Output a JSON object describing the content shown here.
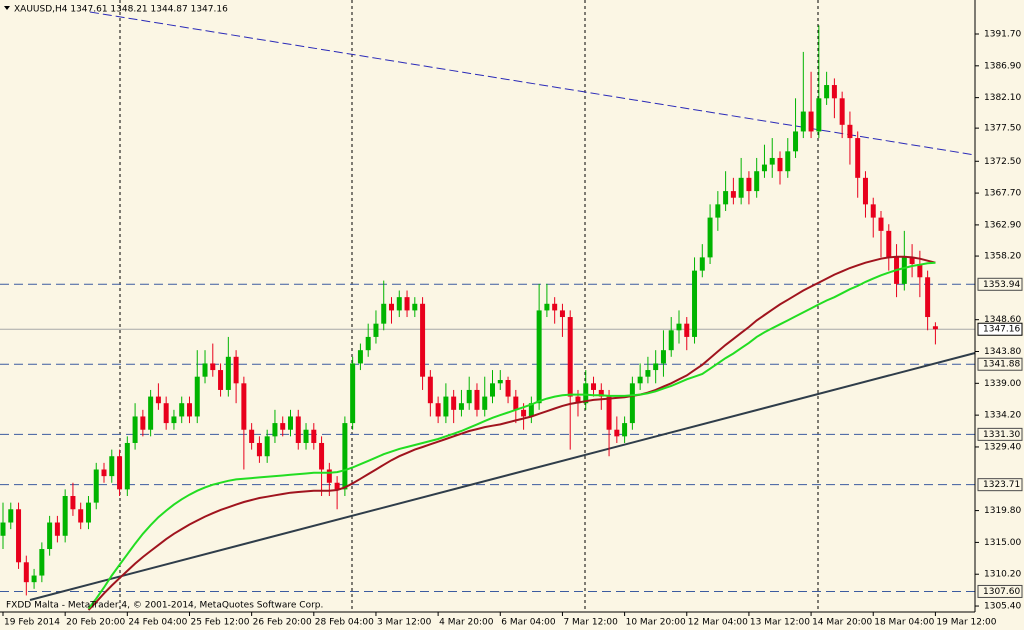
{
  "chart_data": {
    "type": "candlestick",
    "header": "XAUUSD,H4  1347.61 1348.21 1344.87 1347.16",
    "footer": "FXDD Malta - MetaTrader 4, © 2001-2014, MetaQuotes Software Corp.",
    "bull_color": "#00b400",
    "bear_color": "#e8001c",
    "ylim": [
      1304.5,
      1396.83
    ],
    "yticks": [
      {
        "value": 1391.7,
        "label": "1391.70"
      },
      {
        "value": 1386.9,
        "label": "1386.90"
      },
      {
        "value": 1382.1,
        "label": "1382.10"
      },
      {
        "value": 1377.5,
        "label": "1377.50"
      },
      {
        "value": 1372.5,
        "label": "1372.50"
      },
      {
        "value": 1367.7,
        "label": "1367.70"
      },
      {
        "value": 1362.9,
        "label": "1362.90"
      },
      {
        "value": 1358.2,
        "label": "1358.20"
      },
      {
        "value": 1348.6,
        "label": "1348.60"
      },
      {
        "value": 1343.8,
        "label": "1343.80"
      },
      {
        "value": 1339.0,
        "label": "1339.00"
      },
      {
        "value": 1334.2,
        "label": "1334.20"
      },
      {
        "value": 1329.4,
        "label": "1329.40"
      },
      {
        "value": 1319.8,
        "label": "1319.80"
      },
      {
        "value": 1315.0,
        "label": "1315.00"
      },
      {
        "value": 1310.2,
        "label": "1310.20"
      },
      {
        "value": 1305.4,
        "label": "1305.40"
      }
    ],
    "levels": [
      1353.94,
      1341.88,
      {
        "value": 1331.3,
        "label": "1331.30"
      },
      1323.71,
      {
        "value": 1307.6,
        "label": "1307.60"
      }
    ],
    "level_color": "#3c5ca0",
    "current_price": 1347.16,
    "categories": [
      "19 Feb 2014",
      null,
      null,
      null,
      null,
      null,
      null,
      null,
      "20 Feb 20:00",
      null,
      null,
      null,
      null,
      null,
      null,
      null,
      "24 Feb 04:00",
      null,
      null,
      null,
      null,
      null,
      null,
      null,
      "25 Feb 12:00",
      null,
      null,
      null,
      null,
      null,
      null,
      null,
      "26 Feb 20:00",
      null,
      null,
      null,
      null,
      null,
      null,
      null,
      "28 Feb 04:00",
      null,
      null,
      null,
      null,
      null,
      null,
      null,
      "3 Mar 12:00",
      null,
      null,
      null,
      null,
      null,
      null,
      null,
      "4 Mar 20:00",
      null,
      null,
      null,
      null,
      null,
      null,
      null,
      "6 Mar 04:00",
      null,
      null,
      null,
      null,
      null,
      null,
      null,
      "7 Mar 12:00",
      null,
      null,
      null,
      null,
      null,
      null,
      null,
      "10 Mar 20:00",
      null,
      null,
      null,
      null,
      null,
      null,
      null,
      "12 Mar 04:00",
      null,
      null,
      null,
      null,
      null,
      null,
      null,
      "13 Mar 12:00",
      null,
      null,
      null,
      null,
      null,
      null,
      null,
      "14 Mar 20:00",
      null,
      null,
      null,
      null,
      null,
      null,
      null,
      "18 Mar 04:00",
      null,
      null,
      null,
      null,
      null,
      null,
      null,
      "19 Mar 12:00"
    ],
    "ohlc": [
      [
        1316,
        1321,
        1314,
        1318
      ],
      [
        1318,
        1321,
        1317,
        1320
      ],
      [
        1320,
        1321,
        1311,
        1312
      ],
      [
        1312,
        1313,
        1307,
        1309
      ],
      [
        1309,
        1311,
        1308,
        1310
      ],
      [
        1310,
        1315,
        1309,
        1314
      ],
      [
        1314,
        1319,
        1313,
        1318
      ],
      [
        1318,
        1319,
        1315,
        1316
      ],
      [
        1316,
        1323,
        1315,
        1322
      ],
      [
        1322,
        1324,
        1319,
        1320
      ],
      [
        1320,
        1321,
        1317,
        1318
      ],
      [
        1318,
        1322,
        1317,
        1321
      ],
      [
        1321,
        1327,
        1320,
        1326
      ],
      [
        1326,
        1327,
        1324,
        1325
      ],
      [
        1325,
        1329,
        1324,
        1328
      ],
      [
        1328,
        1329,
        1322,
        1323
      ],
      [
        1323,
        1331,
        1322,
        1330
      ],
      [
        1330,
        1336,
        1329,
        1334
      ],
      [
        1334,
        1335,
        1331,
        1332
      ],
      [
        1332,
        1338,
        1331,
        1337
      ],
      [
        1337,
        1339,
        1335,
        1336
      ],
      [
        1336,
        1337,
        1332,
        1333
      ],
      [
        1333,
        1335,
        1332,
        1334
      ],
      [
        1334,
        1337,
        1333,
        1336
      ],
      [
        1336,
        1337,
        1333,
        1334
      ],
      [
        1334,
        1344,
        1333,
        1340
      ],
      [
        1340,
        1344,
        1339,
        1342
      ],
      [
        1342,
        1345,
        1340,
        1341
      ],
      [
        1341,
        1342,
        1337,
        1338
      ],
      [
        1338,
        1346,
        1337,
        1343
      ],
      [
        1343,
        1344,
        1336,
        1339
      ],
      [
        1339,
        1340,
        1326,
        1332
      ],
      [
        1332,
        1333,
        1329,
        1330
      ],
      [
        1330,
        1331,
        1327,
        1328
      ],
      [
        1328,
        1332,
        1327,
        1331
      ],
      [
        1331,
        1335,
        1330,
        1333
      ],
      [
        1333,
        1334,
        1331,
        1332
      ],
      [
        1332,
        1335,
        1331,
        1334
      ],
      [
        1334,
        1335,
        1329,
        1330
      ],
      [
        1330,
        1333,
        1329,
        1332
      ],
      [
        1332,
        1333,
        1329,
        1330
      ],
      [
        1330,
        1331,
        1322,
        1326
      ],
      [
        1326,
        1327,
        1322,
        1324
      ],
      [
        1324,
        1325,
        1320,
        1323
      ],
      [
        1323,
        1334,
        1322,
        1333
      ],
      [
        1333,
        1343,
        1332,
        1342
      ],
      [
        1342,
        1345,
        1341,
        1344
      ],
      [
        1344,
        1348,
        1343,
        1346
      ],
      [
        1346,
        1350,
        1345,
        1348
      ],
      [
        1348,
        1354.5,
        1347,
        1351
      ],
      [
        1351,
        1352,
        1348,
        1350
      ],
      [
        1350,
        1353,
        1349,
        1352
      ],
      [
        1352,
        1353,
        1349,
        1350
      ],
      [
        1350,
        1352,
        1349,
        1351
      ],
      [
        1351,
        1352,
        1338,
        1340
      ],
      [
        1340,
        1341,
        1334,
        1336
      ],
      [
        1336,
        1337,
        1333,
        1334
      ],
      [
        1334,
        1339,
        1333,
        1337
      ],
      [
        1337,
        1338,
        1333,
        1335
      ],
      [
        1335,
        1338,
        1334,
        1336
      ],
      [
        1336,
        1340,
        1335,
        1338
      ],
      [
        1338,
        1339,
        1334,
        1335
      ],
      [
        1335,
        1340,
        1334,
        1337
      ],
      [
        1337,
        1341,
        1336,
        1339
      ],
      [
        1339,
        1341,
        1338,
        1339.5
      ],
      [
        1339.5,
        1340,
        1336,
        1337
      ],
      [
        1337,
        1338,
        1333,
        1335
      ],
      [
        1335,
        1336,
        1332,
        1334
      ],
      [
        1334,
        1337,
        1333,
        1336
      ],
      [
        1336,
        1354,
        1335,
        1350
      ],
      [
        1350,
        1354,
        1349,
        1351
      ],
      [
        1351,
        1352,
        1348,
        1350
      ],
      [
        1350,
        1351,
        1346,
        1349
      ],
      [
        1349,
        1350,
        1329,
        1337
      ],
      [
        1337,
        1338,
        1334,
        1336
      ],
      [
        1336,
        1341,
        1335,
        1339
      ],
      [
        1339,
        1340,
        1337,
        1338
      ],
      [
        1338,
        1339,
        1335,
        1337
      ],
      [
        1337,
        1338,
        1328,
        1332
      ],
      [
        1332,
        1334,
        1330,
        1331
      ],
      [
        1331,
        1334,
        1330,
        1333
      ],
      [
        1333,
        1340,
        1332,
        1339
      ],
      [
        1339,
        1342,
        1338,
        1340
      ],
      [
        1340,
        1343,
        1339,
        1341
      ],
      [
        1341,
        1344,
        1339,
        1342
      ],
      [
        1342,
        1347,
        1340,
        1344
      ],
      [
        1344,
        1349,
        1343,
        1347
      ],
      [
        1347,
        1350,
        1345,
        1348
      ],
      [
        1348,
        1349,
        1344,
        1346
      ],
      [
        1346,
        1358,
        1345,
        1356
      ],
      [
        1356,
        1360,
        1355,
        1358
      ],
      [
        1358,
        1366,
        1357,
        1364
      ],
      [
        1364,
        1368,
        1362,
        1366
      ],
      [
        1366,
        1371,
        1365,
        1368
      ],
      [
        1368,
        1370,
        1366,
        1367
      ],
      [
        1367,
        1373,
        1366,
        1370
      ],
      [
        1370,
        1371,
        1366,
        1368
      ],
      [
        1368,
        1373,
        1367,
        1371
      ],
      [
        1371,
        1375,
        1370,
        1372
      ],
      [
        1372,
        1376,
        1370,
        1373
      ],
      [
        1373,
        1374,
        1369,
        1371
      ],
      [
        1371,
        1376,
        1370,
        1374
      ],
      [
        1374,
        1382,
        1373,
        1377
      ],
      [
        1377,
        1389,
        1376,
        1380
      ],
      [
        1380,
        1386,
        1376,
        1377
      ],
      [
        1377,
        1393,
        1376,
        1382
      ],
      [
        1382,
        1386,
        1381,
        1384
      ],
      [
        1384,
        1385,
        1379,
        1382
      ],
      [
        1382,
        1383,
        1376,
        1378
      ],
      [
        1378,
        1380,
        1372,
        1376
      ],
      [
        1376,
        1377,
        1367,
        1370
      ],
      [
        1370,
        1371,
        1364,
        1366
      ],
      [
        1366,
        1367,
        1361,
        1364
      ],
      [
        1364,
        1365,
        1358,
        1362
      ],
      [
        1362,
        1363,
        1356,
        1358
      ],
      [
        1358,
        1360,
        1352,
        1354
      ],
      [
        1354,
        1362,
        1353,
        1358
      ],
      [
        1358,
        1360,
        1355,
        1357
      ],
      [
        1357,
        1359,
        1352,
        1355
      ],
      [
        1355,
        1356,
        1347,
        1349
      ],
      [
        1347.61,
        1348.21,
        1344.87,
        1347.16
      ]
    ],
    "moving_averages": [
      {
        "color": "#a0141e",
        "values": [
          null,
          null,
          null,
          null,
          null,
          null,
          null,
          null,
          null,
          null,
          null,
          1304.8,
          1306,
          1307.3,
          1308.5,
          1309.6,
          1310.7,
          1311.8,
          1312.8,
          1313.7,
          1314.6,
          1315.5,
          1316.3,
          1317,
          1317.7,
          1318.3,
          1318.9,
          1319.4,
          1319.9,
          1320.3,
          1320.7,
          1321.1,
          1321.4,
          1321.7,
          1321.9,
          1322.1,
          1322.3,
          1322.5,
          1322.6,
          1322.7,
          1322.8,
          1322.8,
          1322.8,
          1322.9,
          1323.3,
          1323.9,
          1324.6,
          1325.3,
          1326,
          1326.7,
          1327.4,
          1328,
          1328.5,
          1329,
          1329.4,
          1329.8,
          1330.2,
          1330.6,
          1331,
          1331.4,
          1331.8,
          1332.1,
          1332.4,
          1332.6,
          1332.8,
          1333.1,
          1333.4,
          1333.7,
          1334,
          1334.4,
          1334.8,
          1335.2,
          1335.6,
          1335.9,
          1336.1,
          1336.3,
          1336.5,
          1336.6,
          1336.7,
          1336.8,
          1336.9,
          1337.1,
          1337.3,
          1337.6,
          1338,
          1338.5,
          1339,
          1339.6,
          1340.2,
          1341,
          1341.8,
          1342.8,
          1343.8,
          1344.8,
          1345.7,
          1346.6,
          1347.5,
          1348.5,
          1349.3,
          1350.1,
          1350.9,
          1351.6,
          1352.3,
          1353,
          1353.6,
          1354.2,
          1354.8,
          1355.4,
          1355.9,
          1356.4,
          1356.8,
          1357.2,
          1357.5,
          1357.8,
          1358,
          1358.1,
          1358.1,
          1358,
          1357.8,
          1357.5,
          1357.2
        ]
      },
      {
        "color": "#22dd22",
        "values": [
          null,
          null,
          null,
          null,
          null,
          null,
          null,
          null,
          null,
          null,
          null,
          1305,
          1306.5,
          1308.2,
          1310,
          1311.6,
          1313.2,
          1314.8,
          1316.3,
          1317.6,
          1318.8,
          1319.8,
          1320.7,
          1321.5,
          1322.2,
          1322.8,
          1323.3,
          1323.7,
          1324,
          1324.3,
          1324.5,
          1324.6,
          1324.7,
          1324.8,
          1324.9,
          1325,
          1325.1,
          1325.2,
          1325.3,
          1325.4,
          1325.5,
          1325.5,
          1325.5,
          1325.6,
          1325.9,
          1326.3,
          1326.8,
          1327.3,
          1327.8,
          1328.3,
          1328.7,
          1329.1,
          1329.4,
          1329.7,
          1330,
          1330.3,
          1330.6,
          1331,
          1331.4,
          1331.8,
          1332.3,
          1332.8,
          1333.3,
          1333.8,
          1334.2,
          1334.6,
          1335,
          1335.4,
          1335.8,
          1336.3,
          1336.7,
          1337,
          1337.2,
          1337.3,
          1337.3,
          1337.3,
          1337.2,
          1337.2,
          1337.1,
          1337.1,
          1337.1,
          1337.2,
          1337.3,
          1337.5,
          1337.8,
          1338.2,
          1338.6,
          1339.1,
          1339.6,
          1340,
          1340.4,
          1341.2,
          1342,
          1342.8,
          1343.5,
          1344.3,
          1345.1,
          1346,
          1346.7,
          1347.3,
          1347.9,
          1348.5,
          1349.1,
          1349.7,
          1350.3,
          1350.9,
          1351.5,
          1352,
          1352.6,
          1353.2,
          1353.7,
          1354.3,
          1354.8,
          1355.3,
          1355.7,
          1356.1,
          1356.4,
          1356.7,
          1356.9,
          1357.1,
          1357.2
        ]
      }
    ]
  }
}
